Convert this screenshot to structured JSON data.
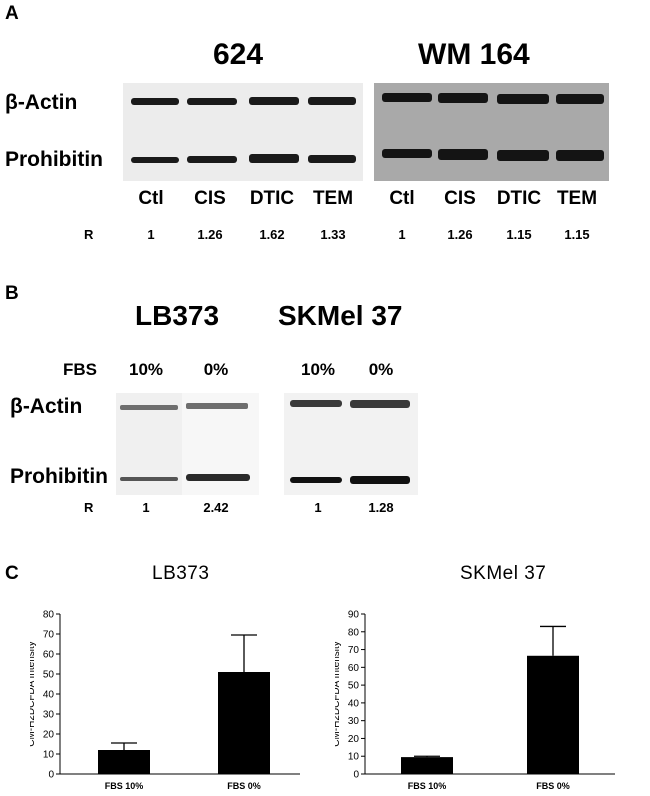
{
  "panel_a": {
    "letter": "A",
    "blot_1_title": "624",
    "blot_2_title": "WM 164",
    "row_labels": [
      "β-Actin",
      "Prohibitin"
    ],
    "lanes": [
      "Ctl",
      "CIS",
      "DTIC",
      "TEM",
      "Ctl",
      "CIS",
      "DTIC",
      "TEM"
    ],
    "r_label": "R",
    "r_values": [
      "1",
      "1.26",
      "1.62",
      "1.33",
      "1",
      "1.26",
      "1.15",
      "1.15"
    ],
    "blot_1_background": "#ececec",
    "blot_2_background": "#a9a9a9"
  },
  "panel_b": {
    "letter": "B",
    "blot_1_title": "LB373",
    "blot_2_title": "SKMel 37",
    "fbs_label": "FBS",
    "lanes": [
      "10%",
      "0%",
      "10%",
      "0%"
    ],
    "row_labels": [
      "β-Actin",
      "Prohibitin"
    ],
    "r_label": "R",
    "r_values": [
      "1",
      "2.42",
      "1",
      "1.28"
    ]
  },
  "panel_c": {
    "letter": "C"
  },
  "chart_data": [
    {
      "type": "bar",
      "title": "LB373",
      "ylabel": "CM-H2DCFDA Intensity",
      "categories": [
        "FBS 10%",
        "FBS 0%"
      ],
      "values": [
        12,
        51
      ],
      "errors": [
        3.5,
        18.5
      ],
      "ylim": [
        0,
        80
      ],
      "yticks": [
        0,
        10,
        20,
        30,
        40,
        50,
        60,
        70,
        80
      ],
      "bar_color": "#000000"
    },
    {
      "type": "bar",
      "title": "SKMel 37",
      "ylabel": "CM-H2DCFDA Intensity",
      "categories": [
        "FBS 10%",
        "FBS 0%"
      ],
      "values": [
        9.5,
        66.5
      ],
      "errors": [
        0.5,
        16.5
      ],
      "ylim": [
        0,
        90
      ],
      "yticks": [
        0,
        10,
        20,
        30,
        40,
        50,
        60,
        70,
        80,
        90
      ],
      "bar_color": "#000000"
    }
  ]
}
